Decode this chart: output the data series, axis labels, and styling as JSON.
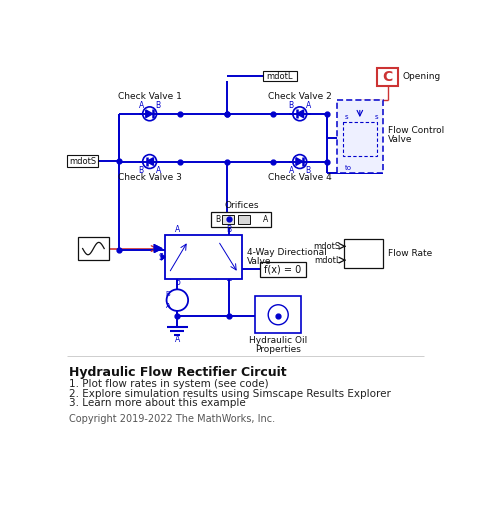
{
  "title": "Hydraulic Flow Rectifier Circuit",
  "bullets": [
    "1. Plot flow rates in system (see code)",
    "2. Explore simulation results using Simscape Results Explorer",
    "3. Learn more about this example"
  ],
  "copyright": "Copyright 2019-2022 The MathWorks, Inc.",
  "blue": "#0000CC",
  "red": "#CC3333",
  "black": "#111111",
  "white": "#FFFFFF",
  "bg": "#FFFFFF",
  "gray_bg": "#F2F2F2"
}
